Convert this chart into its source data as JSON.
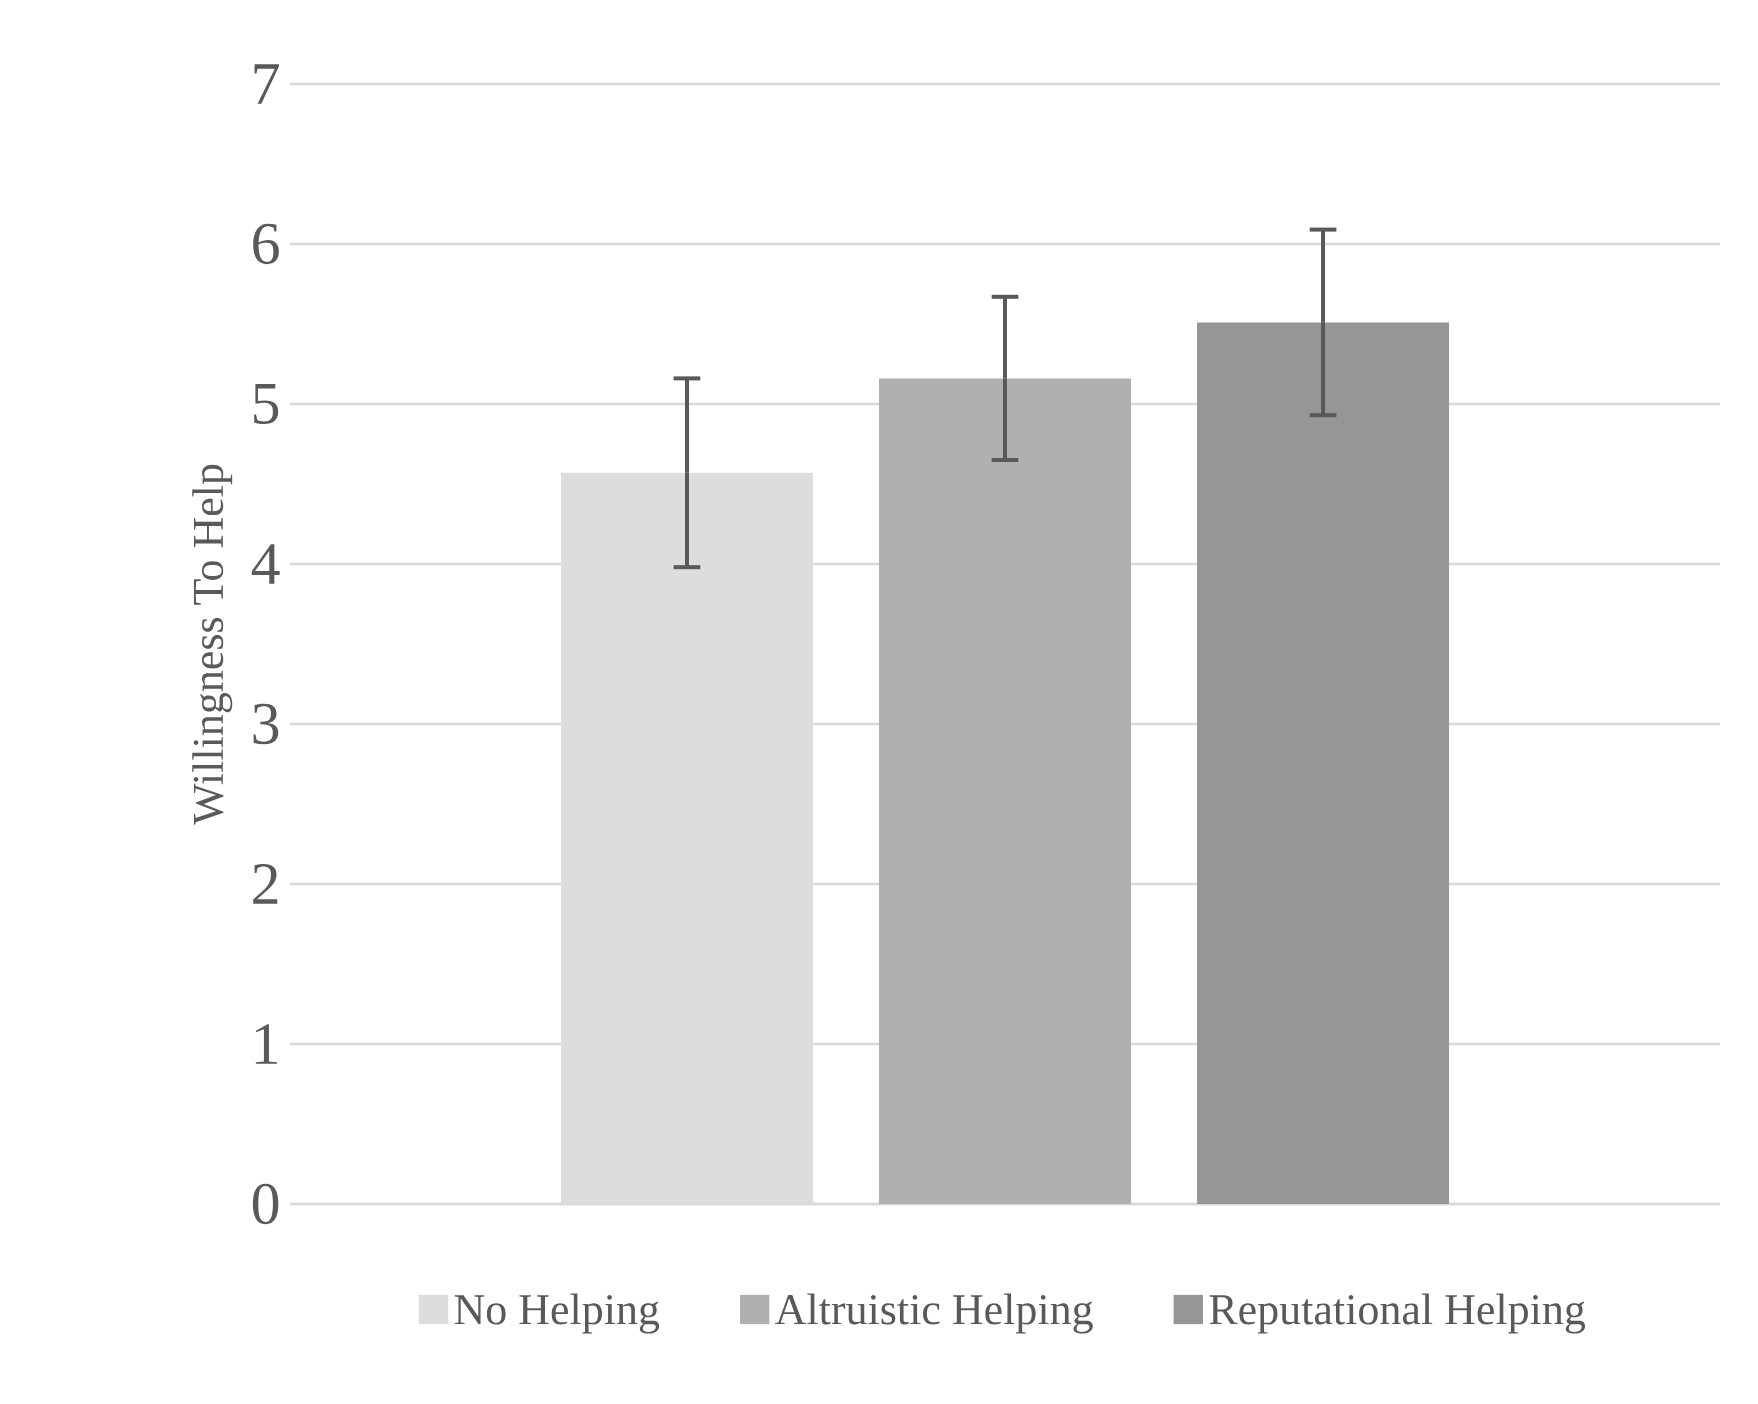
{
  "chart_data": {
    "type": "bar",
    "ylabel": "Willingness To Help",
    "categories": [
      null
    ],
    "series": [
      {
        "name": "No Helping",
        "color": "#dddddd",
        "values": [
          4.57
        ],
        "errors": [
          0.59
        ]
      },
      {
        "name": "Altruistic Helping",
        "color": "#b0b0b0",
        "values": [
          5.16
        ],
        "errors": [
          0.51
        ]
      },
      {
        "name": "Reputational Helping",
        "color": "#969696",
        "values": [
          5.51
        ],
        "errors": [
          0.58
        ]
      }
    ],
    "ylim": [
      0,
      7
    ],
    "yticks": [
      0,
      1,
      2,
      3,
      4,
      5,
      6,
      7
    ],
    "grid": "y",
    "legend": "bottom"
  }
}
